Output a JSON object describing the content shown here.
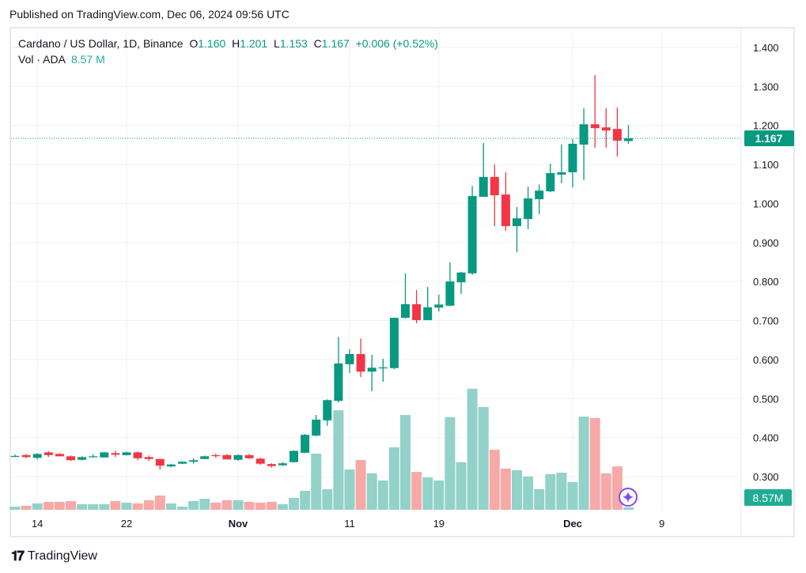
{
  "header": {
    "published": "Published on TradingView.com, Dec 06, 2024 09:56 UTC"
  },
  "legend": {
    "symbol": "Cardano / US Dollar, 1D, Binance",
    "o_label": "O",
    "o_value": "1.160",
    "h_label": "H",
    "h_value": "1.201",
    "l_label": "L",
    "l_value": "1.153",
    "c_label": "C",
    "c_value": "1.167",
    "change": "+0.006 (+0.52%)",
    "vol_label": "Vol · ADA",
    "vol_value": "8.57 M"
  },
  "footer": {
    "brand": "TradingView",
    "logo_mark": "17"
  },
  "colors": {
    "up": "#089981",
    "down": "#f23645",
    "vol_up": "#92d2c8",
    "vol_down": "#f7a9a7",
    "grid": "#f0f1f4",
    "ai_icon": "#7b4dff"
  },
  "chart_data": {
    "type": "candlestick",
    "title": "Cardano / US Dollar, 1D, Binance",
    "ylim": [
      0.3,
      1.4
    ],
    "y_ticks": [
      "1.400",
      "1.300",
      "1.200",
      "1.100",
      "1.000",
      "0.900",
      "0.800",
      "0.700",
      "0.600",
      "0.500",
      "0.400",
      "0.300"
    ],
    "x_ticks": [
      {
        "label": "14",
        "index": 2
      },
      {
        "label": "22",
        "index": 10
      },
      {
        "label": "Nov",
        "index": 20
      },
      {
        "label": "11",
        "index": 30
      },
      {
        "label": "19",
        "index": 38
      },
      {
        "label": "Dec",
        "index": 50
      },
      {
        "label": "9",
        "index": 58
      }
    ],
    "last_price_label": "1.167",
    "last_price": 1.167,
    "last_volume_label": "8.57M",
    "ohlcv_fields": [
      "open",
      "high",
      "low",
      "close",
      "volume_millions"
    ],
    "ohlcv": [
      [
        0.352,
        0.357,
        0.35,
        0.353,
        11.4
      ],
      [
        0.355,
        0.358,
        0.347,
        0.35,
        14.3
      ],
      [
        0.348,
        0.36,
        0.344,
        0.358,
        22.9
      ],
      [
        0.362,
        0.365,
        0.35,
        0.355,
        28.6
      ],
      [
        0.358,
        0.36,
        0.352,
        0.352,
        28.6
      ],
      [
        0.352,
        0.354,
        0.34,
        0.342,
        31.5
      ],
      [
        0.343,
        0.352,
        0.341,
        0.35,
        20.0
      ],
      [
        0.35,
        0.357,
        0.349,
        0.352,
        20.0
      ],
      [
        0.349,
        0.363,
        0.349,
        0.362,
        20.0
      ],
      [
        0.36,
        0.366,
        0.35,
        0.356,
        31.5
      ],
      [
        0.355,
        0.364,
        0.354,
        0.362,
        25.7
      ],
      [
        0.362,
        0.364,
        0.342,
        0.347,
        22.9
      ],
      [
        0.35,
        0.354,
        0.34,
        0.345,
        34.3
      ],
      [
        0.345,
        0.346,
        0.318,
        0.328,
        51.5
      ],
      [
        0.326,
        0.333,
        0.324,
        0.331,
        22.9
      ],
      [
        0.333,
        0.339,
        0.332,
        0.338,
        11.4
      ],
      [
        0.338,
        0.347,
        0.333,
        0.342,
        31.5
      ],
      [
        0.345,
        0.354,
        0.344,
        0.352,
        40.0
      ],
      [
        0.355,
        0.359,
        0.348,
        0.354,
        25.7
      ],
      [
        0.355,
        0.358,
        0.344,
        0.344,
        34.3
      ],
      [
        0.343,
        0.357,
        0.34,
        0.355,
        34.3
      ],
      [
        0.355,
        0.358,
        0.345,
        0.347,
        28.6
      ],
      [
        0.346,
        0.348,
        0.33,
        0.333,
        25.7
      ],
      [
        0.332,
        0.334,
        0.323,
        0.327,
        28.6
      ],
      [
        0.329,
        0.337,
        0.327,
        0.334,
        20.0
      ],
      [
        0.337,
        0.367,
        0.336,
        0.366,
        42.9
      ],
      [
        0.361,
        0.409,
        0.36,
        0.407,
        68.6
      ],
      [
        0.405,
        0.458,
        0.403,
        0.446,
        203
      ],
      [
        0.444,
        0.498,
        0.43,
        0.496,
        74.4
      ],
      [
        0.494,
        0.658,
        0.49,
        0.59,
        360
      ],
      [
        0.588,
        0.626,
        0.565,
        0.614,
        146
      ],
      [
        0.614,
        0.654,
        0.555,
        0.569,
        180
      ],
      [
        0.569,
        0.612,
        0.519,
        0.579,
        132
      ],
      [
        0.578,
        0.602,
        0.543,
        0.58,
        106
      ],
      [
        0.578,
        0.707,
        0.575,
        0.707,
        226
      ],
      [
        0.707,
        0.821,
        0.705,
        0.742,
        343
      ],
      [
        0.742,
        0.778,
        0.693,
        0.701,
        137
      ],
      [
        0.701,
        0.786,
        0.701,
        0.734,
        117
      ],
      [
        0.733,
        0.766,
        0.723,
        0.741,
        106
      ],
      [
        0.738,
        0.849,
        0.737,
        0.8,
        335
      ],
      [
        0.798,
        0.825,
        0.768,
        0.823,
        172
      ],
      [
        0.821,
        1.045,
        0.817,
        1.019,
        438
      ],
      [
        1.017,
        1.155,
        1.017,
        1.068,
        372
      ],
      [
        1.068,
        1.1,
        0.942,
        1.021,
        217
      ],
      [
        1.023,
        1.08,
        0.93,
        0.942,
        149
      ],
      [
        0.942,
        0.991,
        0.875,
        0.962,
        143
      ],
      [
        0.96,
        1.043,
        0.934,
        1.013,
        120
      ],
      [
        1.011,
        1.049,
        0.973,
        1.033,
        74.4
      ],
      [
        1.031,
        1.102,
        1.029,
        1.078,
        129
      ],
      [
        1.074,
        1.151,
        1.052,
        1.08,
        134
      ],
      [
        1.08,
        1.165,
        1.041,
        1.153,
        100
      ],
      [
        1.151,
        1.244,
        1.06,
        1.203,
        337
      ],
      [
        1.203,
        1.329,
        1.143,
        1.193,
        332
      ],
      [
        1.195,
        1.244,
        1.143,
        1.187,
        132
      ],
      [
        1.191,
        1.246,
        1.12,
        1.161,
        157
      ],
      [
        1.16,
        1.201,
        1.153,
        1.167,
        8.57
      ]
    ]
  }
}
